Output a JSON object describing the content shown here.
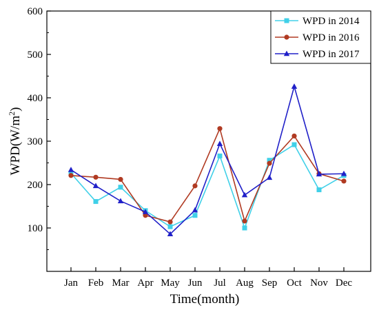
{
  "chart_data": {
    "type": "line",
    "title": "",
    "xlabel": "Time(month)",
    "ylabel": "WPD(W/m²)",
    "ylabel_parts": {
      "base": "WPD(W/m",
      "sup": "2",
      "close": ")"
    },
    "categories": [
      "Jan",
      "Feb",
      "Mar",
      "Apr",
      "May",
      "Jun",
      "Jul",
      "Aug",
      "Sep",
      "Oct",
      "Nov",
      "Dec"
    ],
    "ylim": [
      0,
      600
    ],
    "yticks": [
      100,
      200,
      300,
      400,
      500,
      600
    ],
    "grid": false,
    "legend_position": "top-right",
    "series": [
      {
        "name": "WPD in 2014",
        "color": "#40d0e8",
        "marker": "square",
        "values": [
          226,
          161,
          194,
          140,
          103,
          129,
          266,
          100,
          256,
          292,
          188,
          221
        ]
      },
      {
        "name": "WPD in 2016",
        "color": "#b03a22",
        "marker": "circle",
        "values": [
          221,
          217,
          212,
          129,
          114,
          197,
          329,
          116,
          249,
          312,
          225,
          208
        ]
      },
      {
        "name": "WPD in 2017",
        "color": "#2020c8",
        "marker": "triangle",
        "values": [
          234,
          197,
          162,
          137,
          86,
          141,
          294,
          176,
          216,
          426,
          224,
          225
        ]
      }
    ]
  }
}
